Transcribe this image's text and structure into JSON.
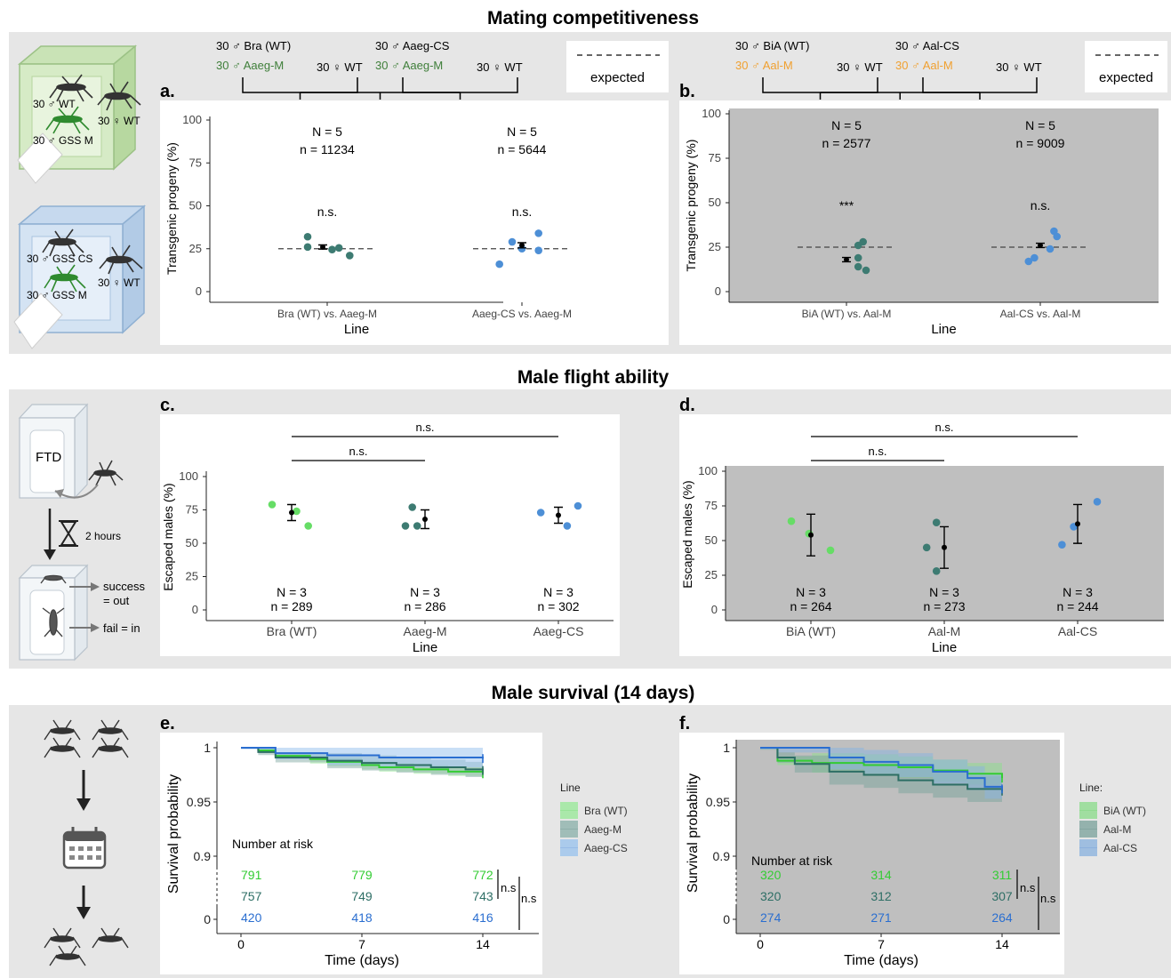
{
  "sections": [
    {
      "title": "Mating competitiveness"
    },
    {
      "title": "Male flight ability"
    },
    {
      "title": "Male survival (14 days)"
    }
  ],
  "illustrations": {
    "cage1": [
      "30 ♂ WT",
      "30 ♀ WT",
      "30 ♂ GSS M"
    ],
    "cage2": [
      "30 ♂ GSS CS",
      "30 ♀ WT",
      "30 ♂ GSS M"
    ],
    "flight": {
      "ftd": "FTD",
      "time": "2 hours",
      "success": "success",
      "out": "= out",
      "fail": "fail = in"
    },
    "icons": [
      "mosquito-icon",
      "cage-icon",
      "hourglass-icon",
      "calendar-icon",
      "arrow-down-icon"
    ]
  },
  "colors": {
    "green": "#66dd66",
    "teal": "#3d7b72",
    "blue": "#4d8fd6",
    "darkgreen_label": "#3f7f3a",
    "orange_label": "#f0a030",
    "survival_green": "#33cc33",
    "survival_teal": "#2d6e65",
    "survival_blue": "#2a6ed0",
    "section_bg": "#e6e6e6",
    "gray_panel": "#bfbfbf"
  },
  "chart_data": [
    {
      "panel": "a.",
      "type": "scatter",
      "background": "white",
      "crosses": [
        {
          "lines": [
            {
              "text": "30 ♂ Bra (WT)",
              "color": "#000000"
            },
            {
              "text": "30 ♂ Aaeg-M",
              "color": "#3f7f3a"
            }
          ],
          "female": "30 ♀ WT"
        },
        {
          "lines": [
            {
              "text": "30 ♂ Aaeg-CS",
              "color": "#000000"
            },
            {
              "text": "30 ♂ Aaeg-M",
              "color": "#3f7f3a"
            }
          ],
          "female": "30 ♀ WT"
        }
      ],
      "legend": "expected",
      "xlabel": "Line",
      "ylabel": "Transgenic progeny (%)",
      "yticks": [
        0,
        25,
        50,
        75,
        100
      ],
      "ylim": [
        0,
        100
      ],
      "expected": 25,
      "groups": [
        {
          "label": "Bra (WT) vs. Aaeg-M",
          "N": "N = 5",
          "n": "n = 11234",
          "sig": "n.s.",
          "mean": 26,
          "err": 1.2,
          "points": [
            {
              "dx": -0.2,
              "y": 32
            },
            {
              "dx": -0.2,
              "y": 26
            },
            {
              "dx": 0.05,
              "y": 24.5
            },
            {
              "dx": 0.12,
              "y": 25.5
            },
            {
              "dx": 0.23,
              "y": 21
            }
          ],
          "color": "#3d7b72"
        },
        {
          "label": "Aaeg-CS vs. Aaeg-M",
          "N": "N = 5",
          "n": "n = 5644",
          "sig": "n.s.",
          "mean": 27,
          "err": 1.5,
          "points": [
            {
              "dx": -0.23,
              "y": 16
            },
            {
              "dx": -0.1,
              "y": 29
            },
            {
              "dx": 0,
              "y": 25
            },
            {
              "dx": 0.17,
              "y": 24
            },
            {
              "dx": 0.17,
              "y": 34
            }
          ],
          "color": "#4d8fd6"
        }
      ]
    },
    {
      "panel": "b.",
      "type": "scatter",
      "background": "gray",
      "crosses": [
        {
          "lines": [
            {
              "text": "30 ♂ BiA (WT)",
              "color": "#000000"
            },
            {
              "text": "30 ♂ Aal-M",
              "color": "#f0a030"
            }
          ],
          "female": "30 ♀ WT"
        },
        {
          "lines": [
            {
              "text": "30 ♂ Aal-CS",
              "color": "#000000"
            },
            {
              "text": "30 ♂ Aal-M",
              "color": "#f0a030"
            }
          ],
          "female": "30 ♀ WT"
        }
      ],
      "legend": "expected",
      "xlabel": "Line",
      "ylabel": "Transgenic progeny (%)",
      "yticks": [
        0,
        25,
        50,
        75,
        100
      ],
      "ylim": [
        0,
        100
      ],
      "expected": 25,
      "groups": [
        {
          "label": "BiA (WT) vs. Aal-M",
          "N": "N = 5",
          "n": "n = 2577",
          "sig": "***",
          "mean": 18,
          "err": 1.2,
          "points": [
            {
              "dx": 0.12,
              "y": 26
            },
            {
              "dx": 0.17,
              "y": 28
            },
            {
              "dx": 0.12,
              "y": 19
            },
            {
              "dx": 0.12,
              "y": 14
            },
            {
              "dx": 0.2,
              "y": 12
            }
          ],
          "color": "#3d7b72"
        },
        {
          "label": "Aal-CS vs. Aal-M",
          "N": "N = 5",
          "n": "n = 9009",
          "sig": "n.s.",
          "mean": 26,
          "err": 1.2,
          "points": [
            {
              "dx": -0.12,
              "y": 17
            },
            {
              "dx": -0.06,
              "y": 19
            },
            {
              "dx": 0.1,
              "y": 24
            },
            {
              "dx": 0.14,
              "y": 34
            },
            {
              "dx": 0.17,
              "y": 31
            }
          ],
          "color": "#4d8fd6"
        }
      ]
    },
    {
      "panel": "c.",
      "type": "scatter",
      "background": "white",
      "xlabel": "Line",
      "ylabel": "Escaped males (%)",
      "yticks": [
        0,
        25,
        50,
        75,
        100
      ],
      "ylim": [
        0,
        100
      ],
      "brackets": [
        {
          "from": 0,
          "to": 1,
          "label": "n.s."
        },
        {
          "from": 0,
          "to": 2,
          "label": "n.s."
        }
      ],
      "groups": [
        {
          "label": "Bra (WT)",
          "N": "N = 3",
          "n": "n = 289",
          "mean": 73,
          "err": 6,
          "color": "#66dd66",
          "points": [
            {
              "dx": -0.2,
              "y": 79
            },
            {
              "dx": 0.05,
              "y": 74
            },
            {
              "dx": 0.17,
              "y": 63
            }
          ]
        },
        {
          "label": "Aaeg-M",
          "N": "N = 3",
          "n": "n = 286",
          "mean": 68,
          "err": 7,
          "color": "#3d7b72",
          "points": [
            {
              "dx": -0.2,
              "y": 63
            },
            {
              "dx": -0.13,
              "y": 77
            },
            {
              "dx": -0.08,
              "y": 63
            }
          ]
        },
        {
          "label": "Aaeg-CS",
          "N": "N = 3",
          "n": "n = 302",
          "mean": 71,
          "err": 6,
          "color": "#4d8fd6",
          "points": [
            {
              "dx": -0.18,
              "y": 73
            },
            {
              "dx": 0.09,
              "y": 63
            },
            {
              "dx": 0.2,
              "y": 78
            }
          ]
        }
      ]
    },
    {
      "panel": "d.",
      "type": "scatter",
      "background": "gray",
      "xlabel": "Line",
      "ylabel": "Escaped males (%)",
      "yticks": [
        0,
        25,
        50,
        75,
        100
      ],
      "ylim": [
        0,
        100
      ],
      "brackets": [
        {
          "from": 0,
          "to": 1,
          "label": "n.s."
        },
        {
          "from": 0,
          "to": 2,
          "label": "n.s."
        }
      ],
      "groups": [
        {
          "label": "BiA (WT)",
          "N": "N = 3",
          "n": "n = 264",
          "mean": 54,
          "err": 15,
          "color": "#66dd66",
          "points": [
            {
              "dx": -0.2,
              "y": 64
            },
            {
              "dx": -0.02,
              "y": 55
            },
            {
              "dx": 0.2,
              "y": 43
            }
          ]
        },
        {
          "label": "Aal-M",
          "N": "N = 3",
          "n": "n = 273",
          "mean": 45,
          "err": 15,
          "color": "#3d7b72",
          "points": [
            {
              "dx": -0.18,
              "y": 45
            },
            {
              "dx": -0.08,
              "y": 63
            },
            {
              "dx": -0.08,
              "y": 28
            }
          ]
        },
        {
          "label": "Aal-CS",
          "N": "N = 3",
          "n": "n = 244",
          "mean": 62,
          "err": 14,
          "color": "#4d8fd6",
          "points": [
            {
              "dx": -0.16,
              "y": 47
            },
            {
              "dx": -0.04,
              "y": 60
            },
            {
              "dx": 0.2,
              "y": 78
            }
          ]
        }
      ]
    },
    {
      "panel": "e.",
      "type": "line",
      "background": "white",
      "xlabel": "Time (days)",
      "ylabel": "Survival probability",
      "xticks": [
        0,
        7,
        14
      ],
      "yticks": [
        {
          "value": 1,
          "label": "1"
        },
        {
          "value": 0.95,
          "label": "0.95"
        },
        {
          "value": 0.9,
          "label": "0.9"
        },
        {
          "value": 0,
          "label": "0"
        }
      ],
      "legend_title": "Line",
      "risk_title": "Number at risk",
      "comparisons": [
        "n.s",
        "n.s"
      ],
      "series": [
        {
          "name": "Bra (WT)",
          "color": "#33cc33",
          "fill": "#9be89b",
          "steps": [
            [
              0,
              1.0
            ],
            [
              1,
              0.9975
            ],
            [
              2,
              0.9925
            ],
            [
              4,
              0.9895
            ],
            [
              5,
              0.987
            ],
            [
              7,
              0.984
            ],
            [
              8,
              0.982
            ],
            [
              10,
              0.98
            ],
            [
              12,
              0.978
            ],
            [
              14,
              0.976
            ]
          ],
          "risk": [
            "791",
            "779",
            "772"
          ]
        },
        {
          "name": "Aaeg-M",
          "color": "#2d6e65",
          "fill": "#8fb3ad",
          "steps": [
            [
              0,
              1.0
            ],
            [
              1,
              0.996
            ],
            [
              2,
              0.991
            ],
            [
              5,
              0.988
            ],
            [
              7,
              0.986
            ],
            [
              9,
              0.984
            ],
            [
              11,
              0.982
            ],
            [
              13,
              0.98
            ],
            [
              14,
              0.979
            ]
          ],
          "risk": [
            "757",
            "749",
            "743"
          ]
        },
        {
          "name": "Aaeg-CS",
          "color": "#2a6ed0",
          "fill": "#9cc4ee",
          "steps": [
            [
              0,
              1.0
            ],
            [
              1,
              1.0
            ],
            [
              2,
              0.995
            ],
            [
              5,
              0.993
            ],
            [
              8,
              0.991
            ],
            [
              14,
              0.99
            ]
          ],
          "risk": [
            "420",
            "418",
            "416"
          ]
        }
      ]
    },
    {
      "panel": "f.",
      "type": "line",
      "background": "gray",
      "xlabel": "Time (days)",
      "ylabel": "Survival probability",
      "xticks": [
        0,
        7,
        14
      ],
      "yticks": [
        {
          "value": 1,
          "label": "1"
        },
        {
          "value": 0.95,
          "label": "0.95"
        },
        {
          "value": 0.9,
          "label": "0.9"
        },
        {
          "value": 0,
          "label": "0"
        }
      ],
      "legend_title": "Line:",
      "risk_title": "Number at risk",
      "comparisons": [
        "n.s",
        "n.s"
      ],
      "series": [
        {
          "name": "BiA (WT)",
          "color": "#33cc33",
          "fill": "#8fdc8f",
          "steps": [
            [
              0,
              1.0
            ],
            [
              1,
              0.988
            ],
            [
              3,
              0.986
            ],
            [
              6,
              0.984
            ],
            [
              8,
              0.982
            ],
            [
              10,
              0.979
            ],
            [
              12,
              0.976
            ],
            [
              14,
              0.972
            ]
          ],
          "risk": [
            "320",
            "314",
            "311"
          ]
        },
        {
          "name": "Aal-M",
          "color": "#2d6e65",
          "fill": "#7fa59f",
          "steps": [
            [
              0,
              1.0
            ],
            [
              1,
              0.991
            ],
            [
              2,
              0.985
            ],
            [
              4,
              0.978
            ],
            [
              6,
              0.975
            ],
            [
              8,
              0.97
            ],
            [
              10,
              0.966
            ],
            [
              12,
              0.962
            ],
            [
              14,
              0.96
            ]
          ],
          "risk": [
            "320",
            "312",
            "307"
          ]
        },
        {
          "name": "Aal-CS",
          "color": "#2a6ed0",
          "fill": "#8db4de",
          "steps": [
            [
              0,
              1.0
            ],
            [
              1,
              1.0
            ],
            [
              4,
              0.991
            ],
            [
              6,
              0.987
            ],
            [
              8,
              0.984
            ],
            [
              10,
              0.978
            ],
            [
              12,
              0.972
            ],
            [
              13,
              0.964
            ],
            [
              14,
              0.962
            ]
          ],
          "risk": [
            "274",
            "271",
            "264"
          ]
        }
      ]
    }
  ]
}
